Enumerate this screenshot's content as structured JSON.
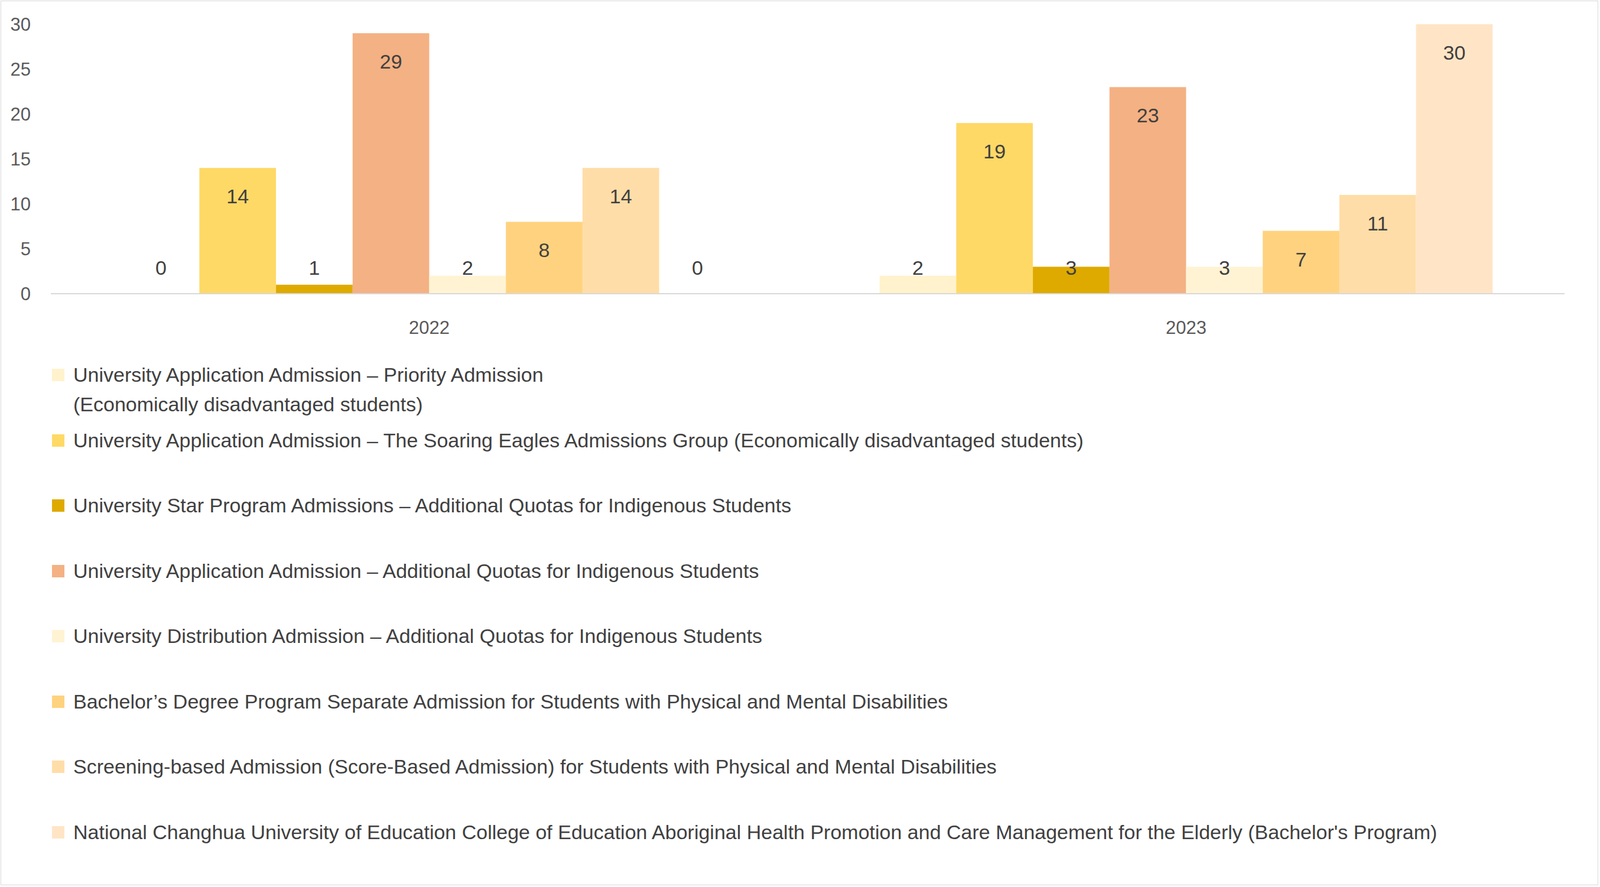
{
  "chart_data": {
    "type": "bar",
    "categories": [
      "2022",
      "2023"
    ],
    "series": [
      {
        "name": "University Application Admission – Priority Admission (Economically disadvantaged students)",
        "color": "#FFF2CC",
        "values": [
          0,
          2
        ]
      },
      {
        "name": "University Application Admission – The Soaring Eagles Admissions Group (Economically disadvantaged students)",
        "color": "#FFD966",
        "values": [
          14,
          19
        ]
      },
      {
        "name": "University Star Program Admissions – Additional Quotas for Indigenous Students",
        "color": "#DEAA00",
        "values": [
          1,
          3
        ]
      },
      {
        "name": "University Application Admission – Additional Quotas for Indigenous Students",
        "color": "#F4B183",
        "values": [
          29,
          23
        ]
      },
      {
        "name": "University Distribution Admission – Additional Quotas for Indigenous Students",
        "color": "#FFF3D3",
        "values": [
          2,
          3
        ]
      },
      {
        "name": "Bachelor’s Degree Program Separate Admission for Students with Physical and Mental Disabilities",
        "color": "#FFD27F",
        "values": [
          8,
          7
        ]
      },
      {
        "name": "Screening-based Admission (Score-Based Admission) for Students with Physical and Mental Disabilities",
        "color": "#FFDDA8",
        "values": [
          14,
          11
        ]
      },
      {
        "name": "National Changhua University of Education College of Education Aboriginal Health Promotion and Care Management for the Elderly (Bachelor's Program)",
        "color": "#FFE5C6",
        "values": [
          0,
          30
        ]
      }
    ],
    "ylim": [
      0,
      30
    ],
    "yticks": [
      0,
      5,
      10,
      15,
      20,
      25,
      30
    ],
    "grid": false,
    "data_labels": true,
    "legend": "bottom"
  }
}
